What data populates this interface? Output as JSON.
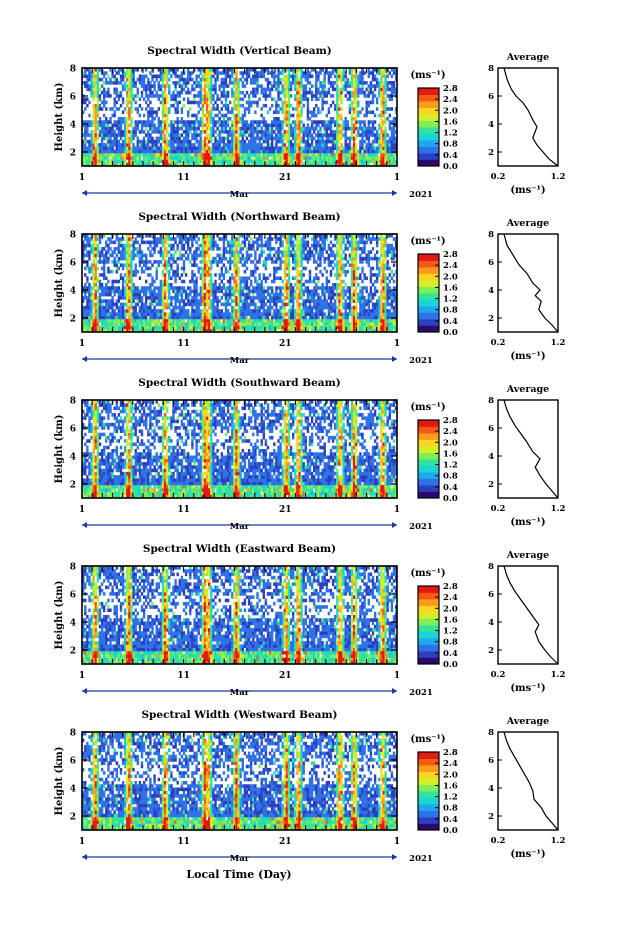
{
  "figure": {
    "xlabel_bottom": "Local Time (Day)",
    "month_label": "Mar",
    "year_label": "2021",
    "x_tick_labels": [
      "1",
      "11",
      "21",
      "1"
    ],
    "colorbar_unit": "(ms⁻¹)",
    "colorbar_ticks": [
      "0.0",
      "0.4",
      "0.8",
      "1.2",
      "1.6",
      "2.0",
      "2.4",
      "2.8"
    ],
    "colormap": [
      "#2a0a6b",
      "#2b3fbf",
      "#2f72e8",
      "#1fa8ef",
      "#17d6d3",
      "#33e39d",
      "#7fef55",
      "#d4ef2a",
      "#fbd521",
      "#fb9a1c",
      "#f55a15",
      "#e01b13"
    ],
    "profile_title": "Average",
    "profile_xlabel": "(ms⁻¹)",
    "profile_x_ticks": [
      "0.2",
      "1.2"
    ],
    "profile_y_ticks": [
      "2",
      "4",
      "6",
      "8"
    ],
    "ylabel": "Height (km)",
    "y_ticks": [
      "2",
      "4",
      "6",
      "8"
    ]
  },
  "chart_data": [
    {
      "type": "heatmap",
      "title": "Spectral Width (Vertical Beam)",
      "x_range_days": [
        1,
        32
      ],
      "ylim_km": [
        1,
        8
      ],
      "color_range": [
        0,
        2.8
      ],
      "profile": {
        "x": [
          1.2,
          1.05,
          0.95,
          0.85,
          0.78,
          0.85,
          0.78,
          0.7,
          0.62,
          0.5,
          0.42,
          0.35,
          0.3
        ],
        "y": [
          1.0,
          1.5,
          2.0,
          2.5,
          3.0,
          3.8,
          4.3,
          5.0,
          5.5,
          6.0,
          6.5,
          7.2,
          8.0
        ]
      }
    },
    {
      "type": "heatmap",
      "title": "Spectral Width (Northward Beam)",
      "x_range_days": [
        1,
        32
      ],
      "ylim_km": [
        1,
        8
      ],
      "color_range": [
        0,
        2.8
      ],
      "profile": {
        "x": [
          1.2,
          1.1,
          0.98,
          0.88,
          0.92,
          0.82,
          0.9,
          0.78,
          0.68,
          0.55,
          0.45,
          0.35,
          0.3
        ],
        "y": [
          1.0,
          1.5,
          2.0,
          2.6,
          3.2,
          3.6,
          4.0,
          4.5,
          5.2,
          5.8,
          6.5,
          7.2,
          8.0
        ]
      }
    },
    {
      "type": "heatmap",
      "title": "Spectral Width (Southward Beam)",
      "x_range_days": [
        1,
        32
      ],
      "ylim_km": [
        1,
        8
      ],
      "color_range": [
        0,
        2.8
      ],
      "profile": {
        "x": [
          1.2,
          1.1,
          1.0,
          0.9,
          0.82,
          0.9,
          0.78,
          0.68,
          0.58,
          0.48,
          0.4,
          0.34,
          0.3
        ],
        "y": [
          1.0,
          1.5,
          2.0,
          2.6,
          3.2,
          3.8,
          4.3,
          5.0,
          5.6,
          6.2,
          6.8,
          7.4,
          8.0
        ]
      }
    },
    {
      "type": "heatmap",
      "title": "Spectral Width (Eastward Beam)",
      "x_range_days": [
        1,
        32
      ],
      "ylim_km": [
        1,
        8
      ],
      "color_range": [
        0,
        2.8
      ],
      "profile": {
        "x": [
          1.2,
          1.08,
          0.98,
          0.88,
          0.82,
          0.88,
          0.78,
          0.68,
          0.58,
          0.48,
          0.4,
          0.34,
          0.3
        ],
        "y": [
          1.0,
          1.5,
          2.0,
          2.6,
          3.3,
          3.8,
          4.4,
          5.0,
          5.6,
          6.2,
          6.8,
          7.4,
          8.0
        ]
      }
    },
    {
      "type": "heatmap",
      "title": "Spectral Width (Westward Beam)",
      "x_range_days": [
        1,
        32
      ],
      "ylim_km": [
        1,
        8
      ],
      "color_range": [
        0,
        2.8
      ],
      "profile": {
        "x": [
          1.2,
          1.1,
          1.0,
          0.92,
          0.8,
          0.78,
          0.72,
          0.64,
          0.56,
          0.48,
          0.4,
          0.34,
          0.3
        ],
        "y": [
          1.0,
          1.5,
          2.0,
          2.6,
          3.2,
          3.8,
          4.4,
          5.0,
          5.6,
          6.2,
          6.8,
          7.4,
          8.0
        ]
      }
    }
  ]
}
